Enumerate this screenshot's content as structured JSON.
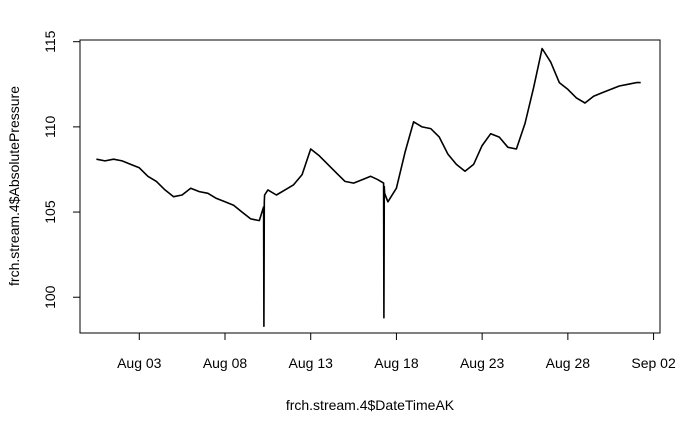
{
  "chart_data": {
    "type": "line",
    "title": "",
    "xlabel": "frch.stream.4$DateTimeAK",
    "ylabel": "frch.stream.4$AbsolutePressure",
    "x_ticks": [
      "Aug 03",
      "Aug 08",
      "Aug 13",
      "Aug 18",
      "Aug 23",
      "Aug 28",
      "Sep 02"
    ],
    "y_ticks": [
      100,
      105,
      110,
      115
    ],
    "xlim": [
      "2019-07-30T13:00",
      "2019-09-02T09:00"
    ],
    "ylim": [
      97.9,
      115.1
    ],
    "grid": false,
    "legend": "none",
    "line_color": "#000000",
    "series": [
      {
        "x": [
          "2019-07-31T12:00",
          "2019-08-01T00:00",
          "2019-08-01T12:00",
          "2019-08-02T00:00",
          "2019-08-02T12:00",
          "2019-08-03T00:00",
          "2019-08-03T12:00",
          "2019-08-04T00:00",
          "2019-08-04T12:00",
          "2019-08-05T00:00",
          "2019-08-05T12:00",
          "2019-08-06T00:00",
          "2019-08-06T12:00",
          "2019-08-07T00:00",
          "2019-08-07T12:00",
          "2019-08-08T00:00",
          "2019-08-08T12:00",
          "2019-08-09T00:00",
          "2019-08-09T12:00",
          "2019-08-10T00:00",
          "2019-08-10T06:00",
          "2019-08-10T06:30",
          "2019-08-10T07:00",
          "2019-08-10T07:30",
          "2019-08-10T12:00",
          "2019-08-11T00:00",
          "2019-08-11T12:00",
          "2019-08-12T00:00",
          "2019-08-12T12:00",
          "2019-08-13T00:00",
          "2019-08-13T12:00",
          "2019-08-14T00:00",
          "2019-08-14T12:00",
          "2019-08-15T00:00",
          "2019-08-15T12:00",
          "2019-08-16T00:00",
          "2019-08-16T12:00",
          "2019-08-16T22:00",
          "2019-08-17T06:00",
          "2019-08-17T06:30",
          "2019-08-17T07:00",
          "2019-08-17T07:30",
          "2019-08-17T12:00",
          "2019-08-18T00:00",
          "2019-08-18T12:00",
          "2019-08-19T00:00",
          "2019-08-19T12:00",
          "2019-08-20T00:00",
          "2019-08-20T12:00",
          "2019-08-21T00:00",
          "2019-08-21T12:00",
          "2019-08-22T00:00",
          "2019-08-22T12:00",
          "2019-08-23T00:00",
          "2019-08-23T12:00",
          "2019-08-24T00:00",
          "2019-08-24T12:00",
          "2019-08-25T00:00",
          "2019-08-25T12:00",
          "2019-08-26T00:00",
          "2019-08-26T12:00",
          "2019-08-27T00:00",
          "2019-08-27T12:00",
          "2019-08-28T00:00",
          "2019-08-28T12:00",
          "2019-08-29T00:00",
          "2019-08-29T12:00",
          "2019-08-30T00:00",
          "2019-08-30T12:00",
          "2019-08-31T00:00",
          "2019-08-31T12:00",
          "2019-09-01T00:00",
          "2019-09-01T06:00"
        ],
        "values": [
          108.1,
          108.0,
          108.1,
          108.0,
          107.8,
          107.6,
          107.1,
          106.8,
          106.3,
          105.9,
          106.0,
          106.4,
          106.2,
          106.1,
          105.8,
          105.6,
          105.4,
          105.0,
          104.6,
          104.5,
          105.3,
          98.3,
          105.6,
          106.0,
          106.3,
          106.0,
          106.3,
          106.6,
          107.2,
          108.7,
          108.3,
          107.8,
          107.3,
          106.8,
          106.7,
          106.9,
          107.1,
          106.9,
          106.7,
          98.8,
          106.5,
          106.1,
          105.6,
          106.4,
          108.5,
          110.3,
          110.0,
          109.9,
          109.4,
          108.4,
          107.8,
          107.4,
          107.8,
          108.9,
          109.6,
          109.4,
          108.8,
          108.7,
          110.2,
          112.3,
          114.6,
          113.8,
          112.6,
          112.2,
          111.7,
          111.4,
          111.8,
          112.0,
          112.2,
          112.4,
          112.5,
          112.6,
          112.6
        ]
      }
    ]
  }
}
